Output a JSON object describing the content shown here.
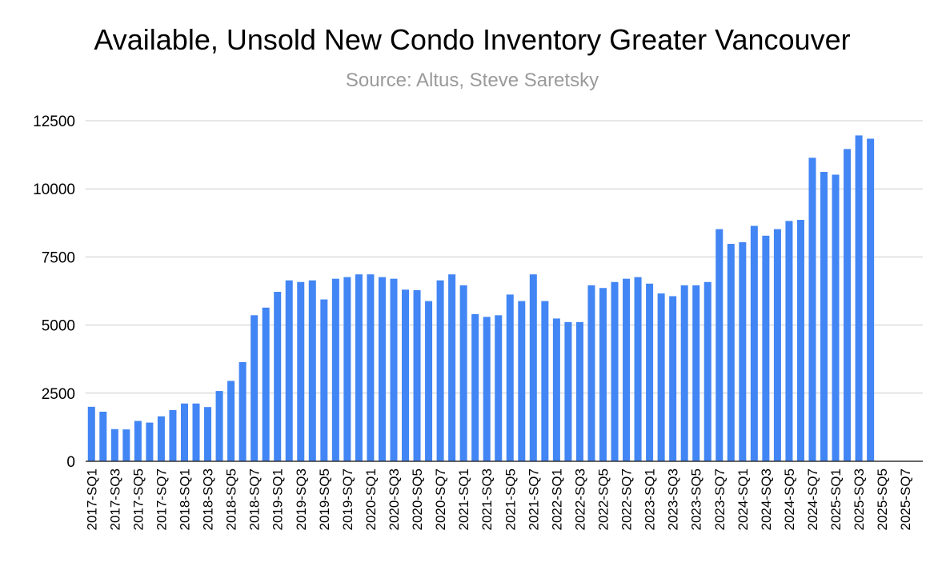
{
  "chart_data": {
    "type": "bar",
    "title": "Available, Unsold New Condo Inventory Greater Vancouver",
    "subtitle": "Source: Altus, Steve Saretsky",
    "xlabel": "",
    "ylabel": "",
    "ylim": [
      0,
      12500
    ],
    "yticks": [
      0,
      2500,
      5000,
      7500,
      10000,
      12500
    ],
    "ytick_labels": [
      "0",
      "2500",
      "5000",
      "7500",
      "10000",
      "12500"
    ],
    "grid": true,
    "legend": "none",
    "bar_color": "#4285f4",
    "categories": [
      "2017-SQ1",
      "2017-SQ2",
      "2017-SQ3",
      "2017-SQ4",
      "2017-SQ5",
      "2017-SQ6",
      "2017-SQ7",
      "2017-SQ8",
      "2018-SQ1",
      "2018-SQ2",
      "2018-SQ3",
      "2018-SQ4",
      "2018-SQ5",
      "2018-SQ6",
      "2018-SQ7",
      "2018-SQ8",
      "2019-SQ1",
      "2019-SQ2",
      "2019-SQ3",
      "2019-SQ4",
      "2019-SQ5",
      "2019-SQ6",
      "2019-SQ7",
      "2019-SQ8",
      "2020-SQ1",
      "2020-SQ2",
      "2020-SQ3",
      "2020-SQ4",
      "2020-SQ5",
      "2020-SQ6",
      "2020-SQ7",
      "2020-SQ8",
      "2021-SQ1",
      "2021-SQ2",
      "2021-SQ3",
      "2021-SQ4",
      "2021-SQ5",
      "2021-SQ6",
      "2021-SQ7",
      "2021-SQ8",
      "2022-SQ1",
      "2022-SQ2",
      "2022-SQ3",
      "2022-SQ4",
      "2022-SQ5",
      "2022-SQ6",
      "2022-SQ7",
      "2022-SQ8",
      "2023-SQ1",
      "2023-SQ2",
      "2023-SQ3",
      "2023-SQ4",
      "2023-SQ5",
      "2023-SQ6",
      "2023-SQ7",
      "2023-SQ8",
      "2024-SQ1",
      "2024-SQ2",
      "2024-SQ3",
      "2024-SQ4",
      "2024-SQ5",
      "2024-SQ6",
      "2024-SQ7",
      "2024-SQ8",
      "2025-SQ1",
      "2025-SQ2",
      "2025-SQ3",
      "2025-SQ4",
      "2025-SQ5",
      "2025-SQ6",
      "2025-SQ7",
      "2025-SQ8"
    ],
    "visible_tick_labels": [
      "2017-SQ1",
      "2017-SQ3",
      "2017-SQ5",
      "2017-SQ7",
      "2018-SQ1",
      "2018-SQ3",
      "2018-SQ5",
      "2018-SQ7",
      "2019-SQ1",
      "2019-SQ3",
      "2019-SQ5",
      "2019-SQ7",
      "2020-SQ1",
      "2020-SQ3",
      "2020-SQ5",
      "2020-SQ7",
      "2021-SQ1",
      "2021-SQ3",
      "2021-SQ5",
      "2021-SQ7",
      "2022-SQ1",
      "2022-SQ3",
      "2022-SQ5",
      "2022-SQ7",
      "2023-SQ1",
      "2023-SQ3",
      "2023-SQ5",
      "2023-SQ7",
      "2024-SQ1",
      "2024-SQ3",
      "2024-SQ5",
      "2024-SQ7",
      "2025-SQ1",
      "2025-SQ3",
      "2025-SQ5",
      "2025-SQ7"
    ],
    "values": [
      2000,
      1820,
      1180,
      1170,
      1480,
      1420,
      1650,
      1880,
      2120,
      2120,
      1990,
      2580,
      2950,
      3640,
      5360,
      5640,
      6220,
      6640,
      6580,
      6640,
      5940,
      6700,
      6760,
      6860,
      6860,
      6760,
      6700,
      6300,
      6280,
      5880,
      6640,
      6860,
      6460,
      5400,
      5300,
      5360,
      6120,
      5880,
      6860,
      5880,
      5240,
      5110,
      5110,
      6460,
      6360,
      6580,
      6700,
      6760,
      6520,
      6160,
      6060,
      6460,
      6460,
      6580,
      8520,
      7980,
      8040,
      8640,
      8280,
      8520,
      8820,
      8860,
      11140,
      10620,
      10520,
      11460,
      11960,
      11840,
      null,
      null,
      null,
      null
    ]
  }
}
